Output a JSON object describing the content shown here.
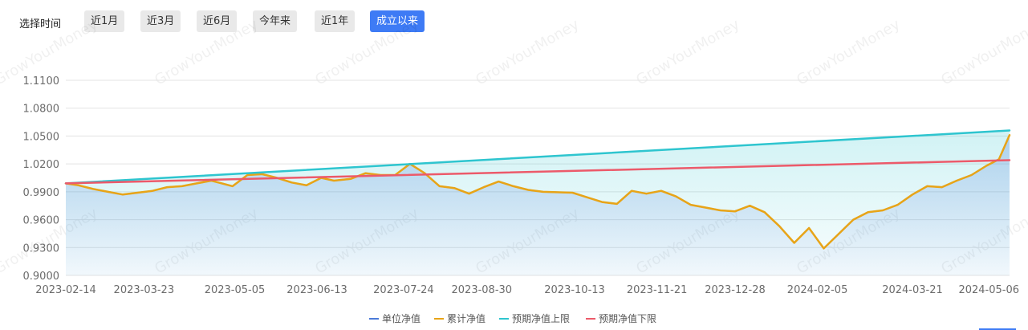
{
  "filter": {
    "label": "选择时间",
    "buttons": [
      {
        "label": "近1月",
        "active": false
      },
      {
        "label": "近3月",
        "active": false
      },
      {
        "label": "近6月",
        "active": false
      },
      {
        "label": "今年来",
        "active": false
      },
      {
        "label": "近1年",
        "active": false
      },
      {
        "label": "成立以来",
        "active": true
      }
    ]
  },
  "watermark": "GrowYourMoney",
  "chart_data": {
    "type": "line",
    "title": "",
    "xlabel": "",
    "ylabel": "",
    "ylim": [
      0.9,
      1.11
    ],
    "yticks": [
      "0.9000",
      "0.9300",
      "0.9600",
      "0.9900",
      "1.0200",
      "1.0500",
      "1.0800",
      "1.1100"
    ],
    "xticks": [
      "2023-02-14",
      "2023-03-23",
      "2023-05-05",
      "2023-06-13",
      "2023-07-24",
      "2023-08-30",
      "2023-10-13",
      "2023-11-21",
      "2023-12-28",
      "2024-02-05",
      "2024-03-21",
      "2024-05-06"
    ],
    "grid": true,
    "legend_position": "bottom",
    "series": [
      {
        "name": "单位净值",
        "color": "#4b7bd9",
        "x": [
          "2023-02-14",
          "2023-02-20",
          "2023-02-27",
          "2023-03-06",
          "2023-03-13",
          "2023-03-20",
          "2023-03-27",
          "2023-04-03",
          "2023-04-10",
          "2023-04-17",
          "2023-04-24",
          "2023-05-04",
          "2023-05-11",
          "2023-05-18",
          "2023-05-25",
          "2023-06-01",
          "2023-06-08",
          "2023-06-15",
          "2023-06-21",
          "2023-06-29",
          "2023-07-06",
          "2023-07-13",
          "2023-07-20",
          "2023-07-27",
          "2023-08-03",
          "2023-08-10",
          "2023-08-17",
          "2023-08-24",
          "2023-08-31",
          "2023-09-07",
          "2023-09-14",
          "2023-09-21",
          "2023-09-28",
          "2023-10-12",
          "2023-10-19",
          "2023-10-26",
          "2023-11-02",
          "2023-11-09",
          "2023-11-16",
          "2023-11-23",
          "2023-11-30",
          "2023-12-07",
          "2023-12-14",
          "2023-12-21",
          "2023-12-28",
          "2024-01-04",
          "2024-01-11",
          "2024-01-18",
          "2024-01-25",
          "2024-02-01",
          "2024-02-08",
          "2024-02-22",
          "2024-02-29",
          "2024-03-07",
          "2024-03-14",
          "2024-03-21",
          "2024-03-28",
          "2024-04-04",
          "2024-04-11",
          "2024-04-18",
          "2024-04-25",
          "2024-05-01",
          "2024-05-06"
        ],
        "values": [
          0.999,
          0.997,
          0.993,
          0.99,
          0.987,
          0.989,
          0.991,
          0.995,
          0.996,
          0.999,
          1.002,
          0.996,
          1.008,
          1.009,
          1.005,
          1.0,
          0.997,
          1.005,
          1.002,
          1.004,
          1.01,
          1.008,
          1.008,
          1.02,
          1.01,
          0.996,
          0.994,
          0.988,
          0.995,
          1.001,
          0.996,
          0.992,
          0.99,
          0.989,
          0.984,
          0.979,
          0.977,
          0.991,
          0.988,
          0.991,
          0.985,
          0.976,
          0.973,
          0.97,
          0.969,
          0.975,
          0.968,
          0.953,
          0.935,
          0.951,
          0.929,
          0.96,
          0.968,
          0.97,
          0.976,
          0.987,
          0.996,
          0.995,
          1.002,
          1.008,
          1.018,
          1.025,
          1.051
        ]
      },
      {
        "name": "累计净值",
        "color": "#e8a417",
        "x": [
          "2023-02-14",
          "2023-02-20",
          "2023-02-27",
          "2023-03-06",
          "2023-03-13",
          "2023-03-20",
          "2023-03-27",
          "2023-04-03",
          "2023-04-10",
          "2023-04-17",
          "2023-04-24",
          "2023-05-04",
          "2023-05-11",
          "2023-05-18",
          "2023-05-25",
          "2023-06-01",
          "2023-06-08",
          "2023-06-15",
          "2023-06-21",
          "2023-06-29",
          "2023-07-06",
          "2023-07-13",
          "2023-07-20",
          "2023-07-27",
          "2023-08-03",
          "2023-08-10",
          "2023-08-17",
          "2023-08-24",
          "2023-08-31",
          "2023-09-07",
          "2023-09-14",
          "2023-09-21",
          "2023-09-28",
          "2023-10-12",
          "2023-10-19",
          "2023-10-26",
          "2023-11-02",
          "2023-11-09",
          "2023-11-16",
          "2023-11-23",
          "2023-11-30",
          "2023-12-07",
          "2023-12-14",
          "2023-12-21",
          "2023-12-28",
          "2024-01-04",
          "2024-01-11",
          "2024-01-18",
          "2024-01-25",
          "2024-02-01",
          "2024-02-08",
          "2024-02-22",
          "2024-02-29",
          "2024-03-07",
          "2024-03-14",
          "2024-03-21",
          "2024-03-28",
          "2024-04-04",
          "2024-04-11",
          "2024-04-18",
          "2024-04-25",
          "2024-05-01",
          "2024-05-06"
        ],
        "values": [
          0.999,
          0.997,
          0.993,
          0.99,
          0.987,
          0.989,
          0.991,
          0.995,
          0.996,
          0.999,
          1.002,
          0.996,
          1.008,
          1.009,
          1.005,
          1.0,
          0.997,
          1.005,
          1.002,
          1.004,
          1.01,
          1.008,
          1.008,
          1.02,
          1.01,
          0.996,
          0.994,
          0.988,
          0.995,
          1.001,
          0.996,
          0.992,
          0.99,
          0.989,
          0.984,
          0.979,
          0.977,
          0.991,
          0.988,
          0.991,
          0.985,
          0.976,
          0.973,
          0.97,
          0.969,
          0.975,
          0.968,
          0.953,
          0.935,
          0.951,
          0.929,
          0.96,
          0.968,
          0.97,
          0.976,
          0.987,
          0.996,
          0.995,
          1.002,
          1.008,
          1.018,
          1.025,
          1.051
        ]
      },
      {
        "name": "预期净值上限",
        "color": "#2ec5cf",
        "x": [
          "2023-02-14",
          "2024-05-06"
        ],
        "values": [
          0.999,
          1.056
        ]
      },
      {
        "name": "预期净值下限",
        "color": "#ec5a6a",
        "x": [
          "2023-02-14",
          "2024-05-06"
        ],
        "values": [
          0.999,
          1.024
        ]
      }
    ]
  }
}
